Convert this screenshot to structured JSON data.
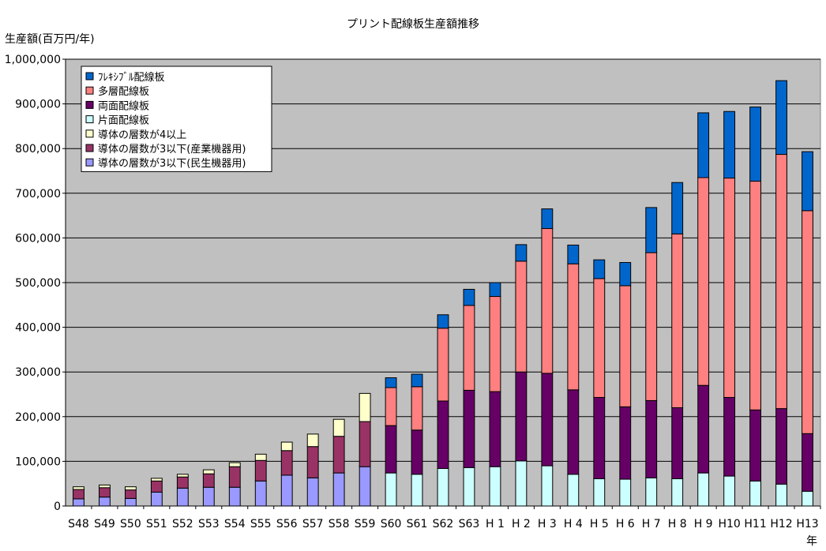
{
  "chart_data": {
    "type": "bar",
    "stacked": true,
    "title": "プリント配線板生産額推移",
    "ylabel": "生産額(百万円/年)",
    "xlabel": "年",
    "ylim": [
      0,
      1000000
    ],
    "yticks": [
      "0",
      "100,000",
      "200,000",
      "300,000",
      "400,000",
      "500,000",
      "600,000",
      "700,000",
      "800,000",
      "900,000",
      "1,000,000"
    ],
    "grid": true,
    "legend_position": "top-left",
    "categories": [
      "S48",
      "S49",
      "S50",
      "S51",
      "S52",
      "S53",
      "S54",
      "S55",
      "S56",
      "S57",
      "S58",
      "S59",
      "S60",
      "S61",
      "S62",
      "S63",
      "H 1",
      "H 2",
      "H 3",
      "H 4",
      "H 5",
      "H 6",
      "H 7",
      "H 8",
      "H 9",
      "H10",
      "H11",
      "H12",
      "H13"
    ],
    "series": [
      {
        "name": "導体の層数が3以下(民生機器用)",
        "color": "#9999ff",
        "values": [
          16000,
          20000,
          17000,
          31000,
          40000,
          42000,
          42000,
          56000,
          69000,
          63000,
          74000,
          88000,
          0,
          0,
          0,
          0,
          0,
          0,
          0,
          0,
          0,
          0,
          0,
          0,
          0,
          0,
          0,
          0,
          0
        ]
      },
      {
        "name": "導体の層数が3以下(産業機器用)",
        "color": "#993366",
        "values": [
          21000,
          21000,
          19000,
          25000,
          25000,
          30000,
          46000,
          46000,
          55000,
          70000,
          82000,
          101000,
          0,
          0,
          0,
          0,
          0,
          0,
          0,
          0,
          0,
          0,
          0,
          0,
          0,
          0,
          0,
          0,
          0
        ]
      },
      {
        "name": "導体の層数が4以上",
        "color": "#ffffcc",
        "values": [
          6000,
          6000,
          7000,
          6000,
          6000,
          9000,
          9000,
          14000,
          19000,
          28000,
          38000,
          63000,
          0,
          0,
          0,
          0,
          0,
          0,
          0,
          0,
          0,
          0,
          0,
          0,
          0,
          0,
          0,
          0,
          0
        ]
      },
      {
        "name": "片面配線板",
        "color": "#ccffff",
        "values": [
          0,
          0,
          0,
          0,
          0,
          0,
          0,
          0,
          0,
          0,
          0,
          0,
          74000,
          71000,
          84000,
          86000,
          88000,
          101000,
          90000,
          71000,
          61000,
          60000,
          63000,
          61000,
          74000,
          67000,
          56000,
          49000,
          33000
        ]
      },
      {
        "name": "両面配線板",
        "color": "#660066",
        "values": [
          0,
          0,
          0,
          0,
          0,
          0,
          0,
          0,
          0,
          0,
          0,
          0,
          106000,
          99000,
          151000,
          173000,
          168000,
          199000,
          207000,
          189000,
          182000,
          162000,
          173000,
          159000,
          196000,
          176000,
          159000,
          169000,
          129000
        ]
      },
      {
        "name": "多層配線板",
        "color": "#ff8080",
        "values": [
          0,
          0,
          0,
          0,
          0,
          0,
          0,
          0,
          0,
          0,
          0,
          0,
          85000,
          97000,
          163000,
          190000,
          213000,
          248000,
          324000,
          282000,
          266000,
          271000,
          331000,
          389000,
          465000,
          491000,
          512000,
          569000,
          499000
        ]
      },
      {
        "name": "ﾌﾚｷｼﾌﾞﾙ配線板",
        "color": "#0066cc",
        "values": [
          0,
          0,
          0,
          0,
          0,
          0,
          0,
          0,
          0,
          0,
          0,
          0,
          22000,
          28000,
          30000,
          36000,
          31000,
          37000,
          44000,
          42000,
          42000,
          52000,
          101000,
          115000,
          145000,
          149000,
          166000,
          165000,
          132000
        ]
      }
    ]
  }
}
